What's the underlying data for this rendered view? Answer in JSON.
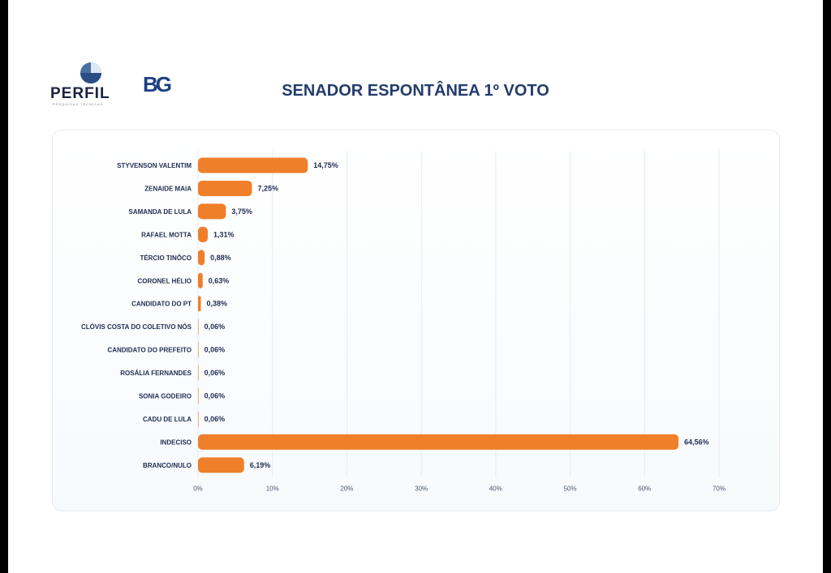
{
  "title": "SENADOR ESPONTÂNEA 1º VOTO",
  "logos": {
    "perfil": "PERFIL",
    "perfil_sub": "PESQUISAS TÉCNICAS",
    "bg": "BG"
  },
  "colors": {
    "bar": "#f07f2a",
    "label": "#1f2d52",
    "grid": "#e6eaf0",
    "title": "#243c6c"
  },
  "chart_data": {
    "type": "bar",
    "orientation": "horizontal",
    "title": "SENADOR ESPONTÂNEA 1º VOTO",
    "categories": [
      "STYVENSON VALENTIM",
      "ZENAIDE MAIA",
      "SAMANDA DE LULA",
      "RAFAEL MOTTA",
      "TÉRCIO TINÔCO",
      "CORONEL HÉLIO",
      "CANDIDATO DO PT",
      "CLÓVIS COSTA DO COLETIVO NÓS",
      "CANDIDATO DO PREFEITO",
      "ROSÁLIA FERNANDES",
      "SONIA GODEIRO",
      "CADU DE LULA",
      "INDECISO",
      "BRANCO/NULO"
    ],
    "values": [
      14.75,
      7.25,
      3.75,
      1.31,
      0.88,
      0.63,
      0.38,
      0.06,
      0.06,
      0.06,
      0.06,
      0.06,
      64.56,
      6.19
    ],
    "value_labels": [
      "14,75%",
      "7,25%",
      "3,75%",
      "1,31%",
      "0,88%",
      "0,63%",
      "0,38%",
      "0,06%",
      "0,06%",
      "0,06%",
      "0,06%",
      "0,06%",
      "64,56%",
      "6,19%"
    ],
    "xlim": [
      0,
      70
    ],
    "x_ticks": [
      0,
      10,
      20,
      30,
      40,
      50,
      60,
      70
    ],
    "x_tick_labels": [
      "0%",
      "10%",
      "20%",
      "30%",
      "40%",
      "50%",
      "60%",
      "70%"
    ],
    "xlabel": "",
    "ylabel": "",
    "grid": true,
    "legend": "none"
  }
}
